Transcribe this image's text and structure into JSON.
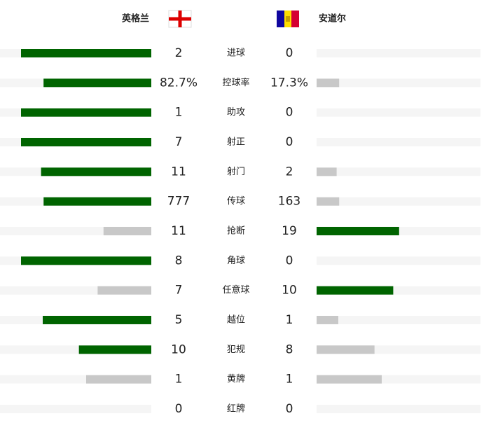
{
  "chart_data": {
    "type": "bar",
    "categories": [
      "进球",
      "控球率",
      "助攻",
      "射正",
      "射门",
      "传球",
      "抢断",
      "角球",
      "任意球",
      "越位",
      "犯规",
      "黄牌",
      "红牌"
    ],
    "series": [
      {
        "name": "英格兰",
        "values": [
          2,
          82.7,
          1,
          7,
          11,
          777,
          11,
          8,
          7,
          5,
          10,
          1,
          0
        ],
        "value_labels": [
          "2",
          "82.7%",
          "1",
          "7",
          "11",
          "777",
          "11",
          "8",
          "7",
          "5",
          "10",
          "1",
          "0"
        ]
      },
      {
        "name": "安道尔",
        "values": [
          0,
          17.3,
          0,
          0,
          2,
          163,
          19,
          0,
          10,
          1,
          8,
          1,
          0
        ],
        "value_labels": [
          "0",
          "17.3%",
          "0",
          "0",
          "2",
          "163",
          "19",
          "0",
          "10",
          "1",
          "8",
          "1",
          "0"
        ]
      }
    ],
    "colors": {
      "higher": "#006400",
      "lower": "#c8c8c8",
      "track": "#f5f5f5"
    }
  }
}
